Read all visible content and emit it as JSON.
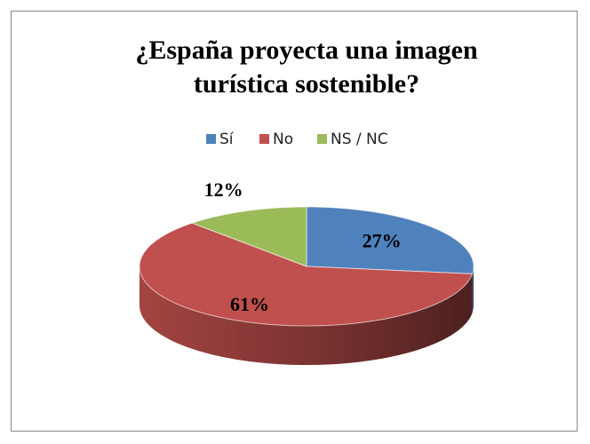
{
  "chart_data": {
    "type": "pie",
    "title": "¿España proyecta una imagen turística sostenible?",
    "categories": [
      "Sí",
      "No",
      "NS / NC"
    ],
    "values": [
      27,
      61,
      12
    ],
    "value_labels": [
      "27%",
      "61%",
      "12%"
    ],
    "colors": [
      "#4f81bd",
      "#c0504d",
      "#9bbb59"
    ],
    "legend": "top"
  }
}
